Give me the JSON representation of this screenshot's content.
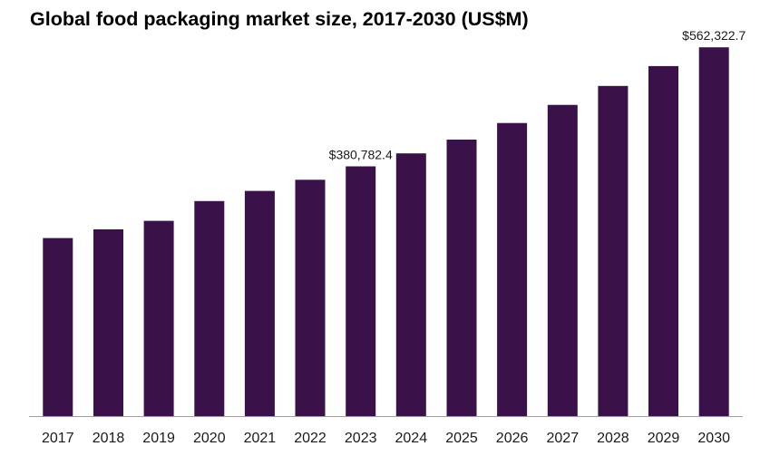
{
  "chart_data": {
    "type": "bar",
    "title": "Global food packaging market size, 2017-2030 (US$M)",
    "xlabel": "",
    "ylabel": "",
    "categories": [
      "2017",
      "2018",
      "2019",
      "2020",
      "2021",
      "2022",
      "2023",
      "2024",
      "2025",
      "2026",
      "2027",
      "2028",
      "2029",
      "2030"
    ],
    "values": [
      271500,
      284800,
      297800,
      327900,
      343400,
      360300,
      380782.4,
      400600,
      421600,
      446900,
      474600,
      503400,
      533700,
      562322.7
    ],
    "data_labels": [
      {
        "category": "2023",
        "text": "$380,782.4"
      },
      {
        "category": "2030",
        "text": "$562,322.7"
      }
    ],
    "ylim": [
      0,
      593000
    ],
    "grid": false,
    "legend": "none",
    "bar_color": "#3a1249",
    "axis_color": "#a0a0a0",
    "text_color": "#1a1a1a"
  }
}
